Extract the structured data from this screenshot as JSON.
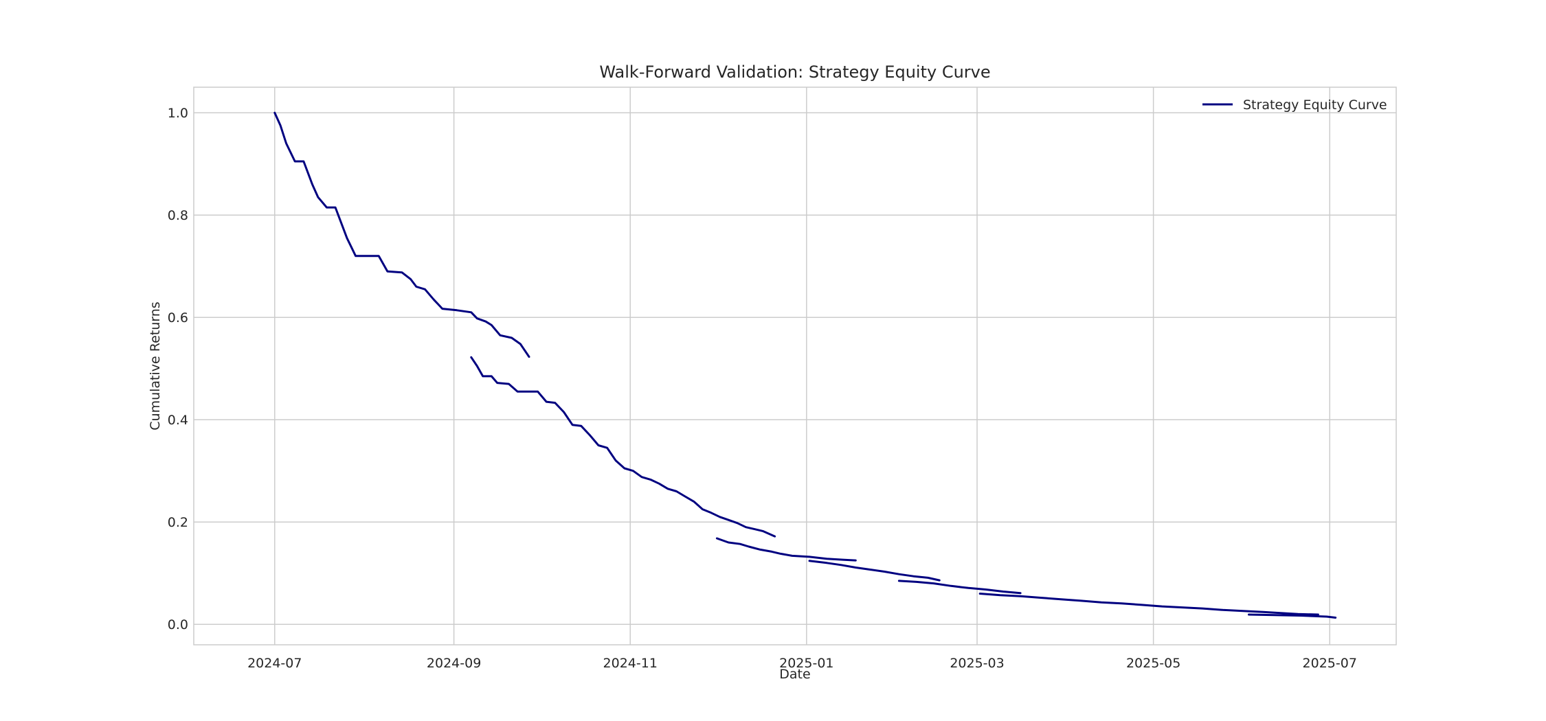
{
  "chart_data": {
    "type": "line",
    "title": "Walk-Forward Validation: Strategy Equity Curve",
    "xlabel": "Date",
    "ylabel": "Cumulative Returns",
    "xlim": [
      "2024-06-03",
      "2025-07-24"
    ],
    "ylim": [
      -0.04,
      1.05
    ],
    "x_ticks": [
      "2024-07-01",
      "2024-09-01",
      "2024-11-01",
      "2025-01-01",
      "2025-03-01",
      "2025-05-01",
      "2025-07-01"
    ],
    "x_tick_labels": [
      "2024-07",
      "2024-09",
      "2024-11",
      "2025-01",
      "2025-03",
      "2025-05",
      "2025-07"
    ],
    "y_ticks": [
      0.0,
      0.2,
      0.4,
      0.6,
      0.8,
      1.0
    ],
    "y_tick_labels": [
      "0.0",
      "0.2",
      "0.4",
      "0.6",
      "0.8",
      "1.0"
    ],
    "grid": true,
    "legend_position": "top-right",
    "colors": {
      "line": "#000080",
      "grid": "#cccccc",
      "frame": "#cccccc",
      "text": "#262626"
    },
    "series": [
      {
        "name": "Strategy Equity Curve",
        "segments": [
          [
            [
              "2024-07-01",
              1.0
            ],
            [
              "2024-07-03",
              0.975
            ],
            [
              "2024-07-05",
              0.94
            ],
            [
              "2024-07-08",
              0.905
            ],
            [
              "2024-07-11",
              0.905
            ],
            [
              "2024-07-14",
              0.86
            ],
            [
              "2024-07-16",
              0.835
            ],
            [
              "2024-07-19",
              0.815
            ],
            [
              "2024-07-22",
              0.815
            ],
            [
              "2024-07-26",
              0.755
            ],
            [
              "2024-07-29",
              0.72
            ],
            [
              "2024-08-02",
              0.72
            ],
            [
              "2024-08-06",
              0.72
            ],
            [
              "2024-08-09",
              0.69
            ],
            [
              "2024-08-14",
              0.688
            ],
            [
              "2024-08-17",
              0.675
            ],
            [
              "2024-08-19",
              0.66
            ],
            [
              "2024-08-22",
              0.655
            ],
            [
              "2024-08-25",
              0.635
            ],
            [
              "2024-08-28",
              0.617
            ],
            [
              "2024-09-02",
              0.614
            ],
            [
              "2024-09-07",
              0.61
            ],
            [
              "2024-09-09",
              0.598
            ],
            [
              "2024-09-12",
              0.592
            ],
            [
              "2024-09-14",
              0.585
            ],
            [
              "2024-09-17",
              0.565
            ],
            [
              "2024-09-21",
              0.56
            ],
            [
              "2024-09-24",
              0.548
            ],
            [
              "2024-09-27",
              0.523
            ]
          ],
          [
            [
              "2024-09-07",
              0.522
            ],
            [
              "2024-09-09",
              0.505
            ],
            [
              "2024-09-11",
              0.485
            ],
            [
              "2024-09-14",
              0.485
            ],
            [
              "2024-09-16",
              0.472
            ],
            [
              "2024-09-20",
              0.47
            ],
            [
              "2024-09-23",
              0.455
            ],
            [
              "2024-09-27",
              0.455
            ],
            [
              "2024-09-30",
              0.455
            ],
            [
              "2024-10-03",
              0.435
            ],
            [
              "2024-10-06",
              0.433
            ],
            [
              "2024-10-09",
              0.415
            ],
            [
              "2024-10-12",
              0.39
            ],
            [
              "2024-10-15",
              0.388
            ],
            [
              "2024-10-18",
              0.37
            ],
            [
              "2024-10-21",
              0.35
            ],
            [
              "2024-10-24",
              0.345
            ],
            [
              "2024-10-27",
              0.32
            ],
            [
              "2024-10-30",
              0.305
            ],
            [
              "2024-11-02",
              0.3
            ],
            [
              "2024-11-05",
              0.288
            ],
            [
              "2024-11-08",
              0.283
            ],
            [
              "2024-11-11",
              0.275
            ],
            [
              "2024-11-14",
              0.265
            ],
            [
              "2024-11-17",
              0.26
            ],
            [
              "2024-11-20",
              0.25
            ],
            [
              "2024-11-23",
              0.24
            ],
            [
              "2024-11-26",
              0.225
            ],
            [
              "2024-11-29",
              0.218
            ],
            [
              "2024-12-02",
              0.21
            ],
            [
              "2024-12-05",
              0.204
            ],
            [
              "2024-12-08",
              0.198
            ],
            [
              "2024-12-11",
              0.19
            ],
            [
              "2024-12-14",
              0.186
            ],
            [
              "2024-12-17",
              0.182
            ],
            [
              "2024-12-21",
              0.172
            ]
          ],
          [
            [
              "2024-12-01",
              0.168
            ],
            [
              "2024-12-05",
              0.16
            ],
            [
              "2024-12-09",
              0.157
            ],
            [
              "2024-12-12",
              0.152
            ],
            [
              "2024-12-16",
              0.146
            ],
            [
              "2024-12-20",
              0.142
            ],
            [
              "2024-12-23",
              0.138
            ],
            [
              "2024-12-27",
              0.134
            ],
            [
              "2025-01-02",
              0.132
            ],
            [
              "2025-01-08",
              0.128
            ],
            [
              "2025-01-14",
              0.126
            ],
            [
              "2025-01-18",
              0.125
            ]
          ],
          [
            [
              "2025-01-02",
              0.124
            ],
            [
              "2025-01-08",
              0.12
            ],
            [
              "2025-01-13",
              0.116
            ],
            [
              "2025-01-18",
              0.111
            ],
            [
              "2025-01-23",
              0.107
            ],
            [
              "2025-01-28",
              0.103
            ],
            [
              "2025-02-02",
              0.098
            ],
            [
              "2025-02-07",
              0.094
            ],
            [
              "2025-02-12",
              0.091
            ],
            [
              "2025-02-16",
              0.086
            ]
          ],
          [
            [
              "2025-02-02",
              0.085
            ],
            [
              "2025-02-08",
              0.083
            ],
            [
              "2025-02-14",
              0.08
            ],
            [
              "2025-02-20",
              0.075
            ],
            [
              "2025-02-26",
              0.071
            ],
            [
              "2025-03-04",
              0.068
            ],
            [
              "2025-03-10",
              0.064
            ],
            [
              "2025-03-16",
              0.061
            ]
          ],
          [
            [
              "2025-03-02",
              0.06
            ],
            [
              "2025-03-09",
              0.057
            ],
            [
              "2025-03-16",
              0.055
            ],
            [
              "2025-03-23",
              0.052
            ],
            [
              "2025-03-30",
              0.049
            ],
            [
              "2025-04-06",
              0.046
            ],
            [
              "2025-04-13",
              0.043
            ],
            [
              "2025-04-20",
              0.041
            ],
            [
              "2025-04-27",
              0.038
            ],
            [
              "2025-05-04",
              0.035
            ],
            [
              "2025-05-11",
              0.033
            ],
            [
              "2025-05-18",
              0.031
            ],
            [
              "2025-05-25",
              0.028
            ],
            [
              "2025-06-01",
              0.026
            ],
            [
              "2025-06-08",
              0.024
            ],
            [
              "2025-06-14",
              0.022
            ],
            [
              "2025-06-20",
              0.02
            ],
            [
              "2025-06-27",
              0.019
            ]
          ],
          [
            [
              "2025-06-03",
              0.019
            ],
            [
              "2025-06-12",
              0.018
            ],
            [
              "2025-06-21",
              0.017
            ],
            [
              "2025-06-30",
              0.015
            ],
            [
              "2025-07-03",
              0.013
            ]
          ]
        ]
      }
    ]
  }
}
